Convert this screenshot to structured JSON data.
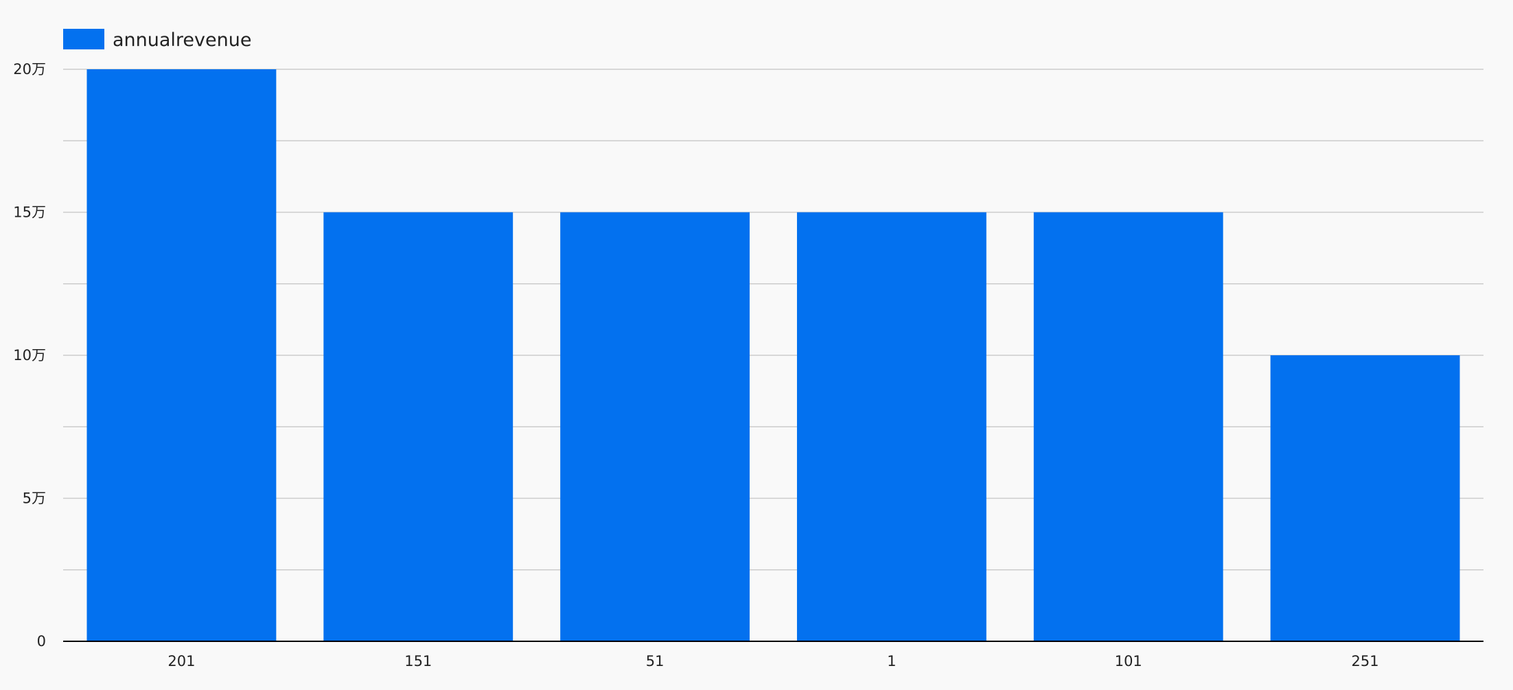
{
  "chart_data": {
    "type": "bar",
    "categories": [
      "201",
      "151",
      "51",
      "1",
      "101",
      "251"
    ],
    "series": [
      {
        "name": "annualrevenue",
        "values": [
          200000,
          150000,
          150000,
          150000,
          150000,
          100000
        ]
      }
    ],
    "ylim": [
      0,
      200000
    ],
    "yticks": [
      0,
      50000,
      100000,
      150000,
      200000
    ],
    "ytick_labels": [
      "0",
      "5万",
      "10万",
      "15万",
      "20万"
    ],
    "minor_gridlines": true,
    "grid": true,
    "legend_position": "top-left",
    "colors": {
      "bar": "#0371ef",
      "grid": "#cccccc",
      "axis": "#000000",
      "background": "#f9f9f9"
    }
  }
}
